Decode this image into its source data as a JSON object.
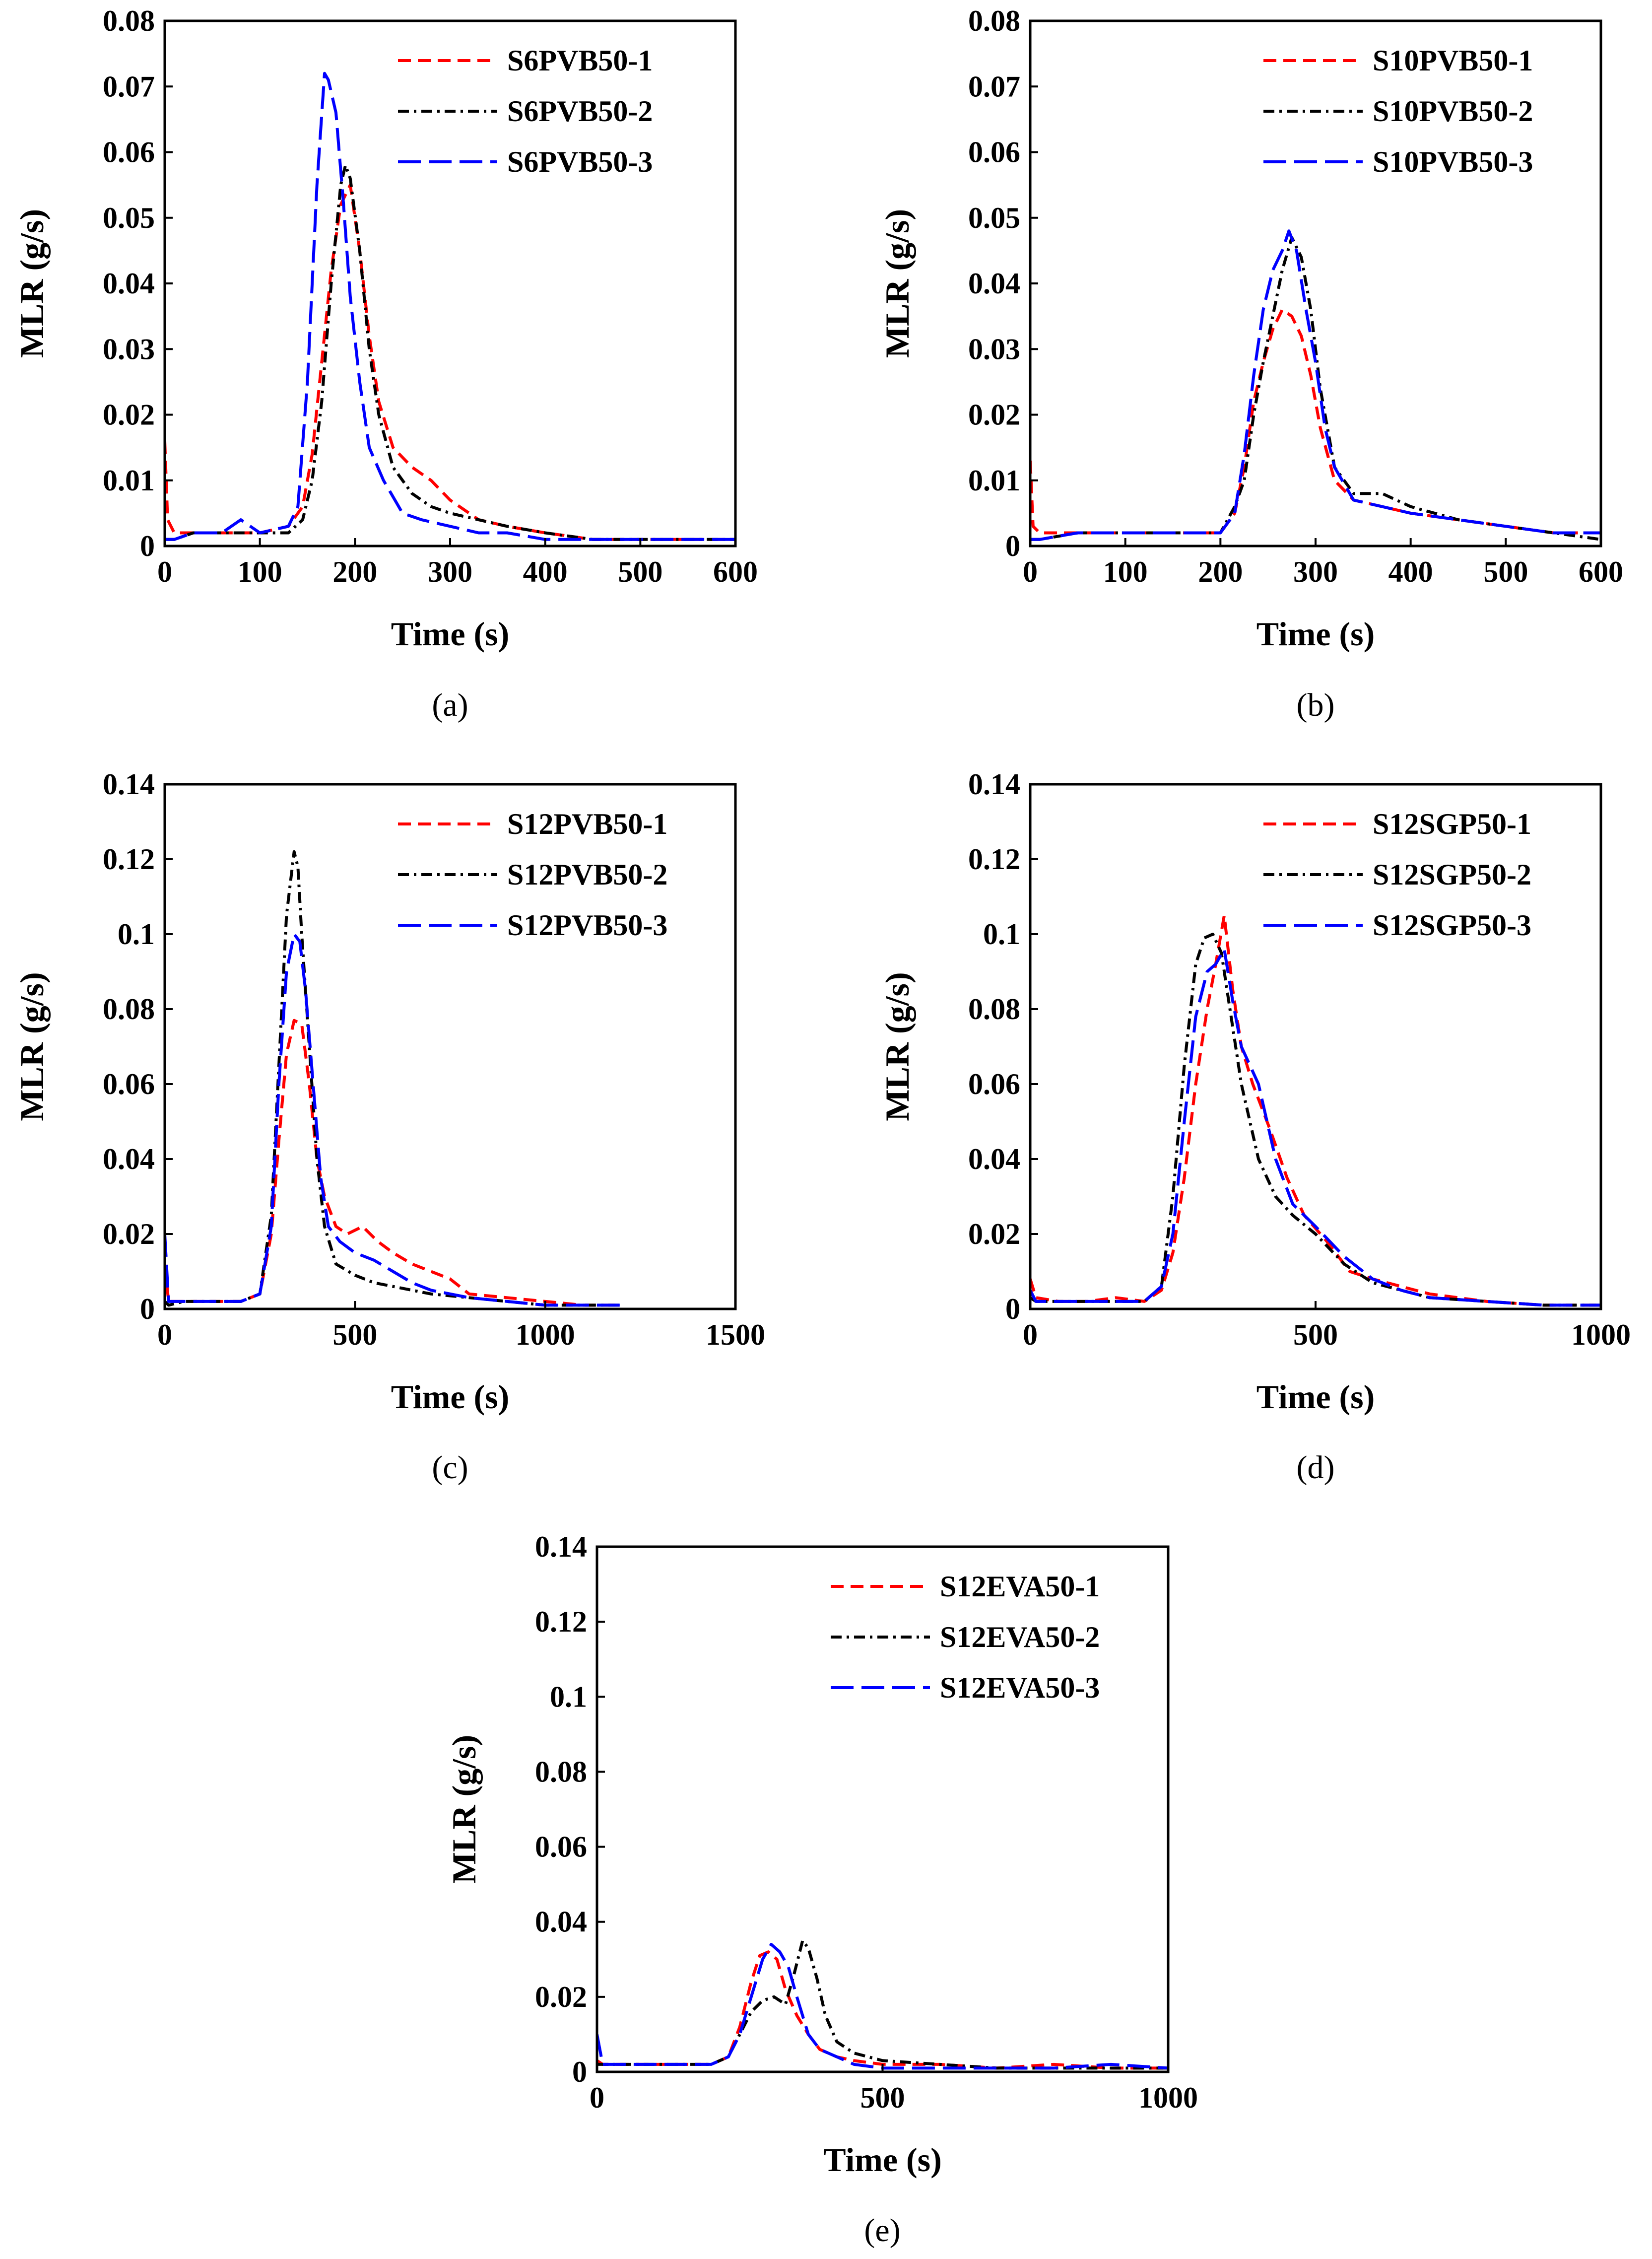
{
  "colors": {
    "series1": "#ff0000",
    "series2": "#000000",
    "series3": "#0000ff"
  },
  "chart_data": [
    {
      "type": "line",
      "panel_label": "(a)",
      "xlabel": "Time (s)",
      "ylabel": "MLR (g/s)",
      "xlim": [
        0,
        600
      ],
      "ylim": [
        0,
        0.08
      ],
      "xticks": [
        0,
        100,
        200,
        300,
        400,
        500,
        600
      ],
      "yticks": [
        0,
        0.01,
        0.02,
        0.03,
        0.04,
        0.05,
        0.06,
        0.07,
        0.08
      ],
      "xtick_labels": [
        "0",
        "100",
        "200",
        "300",
        "400",
        "500",
        "600"
      ],
      "ytick_labels": [
        "0",
        "0.01",
        "0.02",
        "0.03",
        "0.04",
        "0.05",
        "0.06",
        "0.07",
        "0.08"
      ],
      "legend_position": "top-right",
      "series": [
        {
          "name": "S6PVB50-1",
          "style": "dash",
          "x": [
            0,
            3,
            10,
            30,
            60,
            100,
            130,
            145,
            155,
            165,
            175,
            185,
            195,
            205,
            215,
            225,
            240,
            260,
            280,
            300,
            330,
            360,
            400,
            450,
            500,
            550,
            600
          ],
          "y": [
            0.016,
            0.004,
            0.002,
            0.002,
            0.002,
            0.002,
            0.003,
            0.006,
            0.014,
            0.028,
            0.042,
            0.052,
            0.055,
            0.045,
            0.032,
            0.022,
            0.015,
            0.012,
            0.01,
            0.007,
            0.004,
            0.003,
            0.002,
            0.001,
            0.001,
            0.001,
            0.001
          ]
        },
        {
          "name": "S6PVB50-2",
          "style": "dashdot",
          "x": [
            0,
            10,
            30,
            60,
            100,
            130,
            145,
            155,
            165,
            175,
            185,
            190,
            195,
            205,
            215,
            225,
            240,
            260,
            280,
            300,
            330,
            360,
            400,
            450,
            500,
            550,
            600
          ],
          "y": [
            0.001,
            0.001,
            0.002,
            0.002,
            0.002,
            0.002,
            0.004,
            0.01,
            0.022,
            0.04,
            0.055,
            0.058,
            0.056,
            0.045,
            0.03,
            0.02,
            0.012,
            0.008,
            0.006,
            0.005,
            0.004,
            0.003,
            0.002,
            0.001,
            0.001,
            0.001,
            0.001
          ]
        },
        {
          "name": "S6PVB50-3",
          "style": "longdash",
          "x": [
            0,
            10,
            30,
            60,
            80,
            100,
            130,
            140,
            150,
            160,
            168,
            172,
            180,
            188,
            195,
            205,
            215,
            230,
            250,
            270,
            300,
            330,
            360,
            400,
            450,
            500,
            550,
            600
          ],
          "y": [
            0.001,
            0.001,
            0.002,
            0.002,
            0.004,
            0.002,
            0.003,
            0.006,
            0.025,
            0.055,
            0.072,
            0.071,
            0.066,
            0.052,
            0.038,
            0.025,
            0.015,
            0.01,
            0.005,
            0.004,
            0.003,
            0.002,
            0.002,
            0.001,
            0.001,
            0.001,
            0.001,
            0.001
          ]
        }
      ]
    },
    {
      "type": "line",
      "panel_label": "(b)",
      "xlabel": "Time (s)",
      "ylabel": "MLR (g/s)",
      "xlim": [
        0,
        600
      ],
      "ylim": [
        0,
        0.08
      ],
      "xticks": [
        0,
        100,
        200,
        300,
        400,
        500,
        600
      ],
      "yticks": [
        0,
        0.01,
        0.02,
        0.03,
        0.04,
        0.05,
        0.06,
        0.07,
        0.08
      ],
      "xtick_labels": [
        "0",
        "100",
        "200",
        "300",
        "400",
        "500",
        "600"
      ],
      "ytick_labels": [
        "0",
        "0.01",
        "0.02",
        "0.03",
        "0.04",
        "0.05",
        "0.06",
        "0.07",
        "0.08"
      ],
      "legend_position": "top-right",
      "series": [
        {
          "name": "S10PVB50-1",
          "style": "dash",
          "x": [
            0,
            3,
            10,
            50,
            100,
            150,
            200,
            215,
            225,
            235,
            245,
            255,
            265,
            275,
            285,
            295,
            305,
            320,
            340,
            370,
            400,
            450,
            500,
            550,
            600
          ],
          "y": [
            0.013,
            0.003,
            0.002,
            0.002,
            0.002,
            0.002,
            0.002,
            0.005,
            0.012,
            0.022,
            0.028,
            0.033,
            0.036,
            0.035,
            0.032,
            0.026,
            0.018,
            0.01,
            0.007,
            0.006,
            0.005,
            0.004,
            0.003,
            0.002,
            0.002
          ]
        },
        {
          "name": "S10PVB50-2",
          "style": "dashdot",
          "x": [
            0,
            10,
            50,
            100,
            150,
            200,
            215,
            225,
            235,
            245,
            255,
            265,
            275,
            285,
            295,
            305,
            320,
            340,
            370,
            400,
            450,
            500,
            550,
            600
          ],
          "y": [
            0.001,
            0.001,
            0.002,
            0.002,
            0.002,
            0.002,
            0.006,
            0.01,
            0.02,
            0.028,
            0.035,
            0.042,
            0.047,
            0.044,
            0.036,
            0.024,
            0.012,
            0.008,
            0.008,
            0.006,
            0.004,
            0.003,
            0.002,
            0.001
          ]
        },
        {
          "name": "S10PVB50-3",
          "style": "longdash",
          "x": [
            0,
            10,
            50,
            100,
            150,
            200,
            215,
            225,
            235,
            245,
            255,
            265,
            272,
            280,
            290,
            300,
            310,
            320,
            340,
            370,
            400,
            450,
            500,
            550,
            600
          ],
          "y": [
            0.001,
            0.001,
            0.002,
            0.002,
            0.002,
            0.002,
            0.005,
            0.014,
            0.026,
            0.036,
            0.042,
            0.045,
            0.048,
            0.045,
            0.036,
            0.028,
            0.018,
            0.012,
            0.007,
            0.006,
            0.005,
            0.004,
            0.003,
            0.002,
            0.002
          ]
        }
      ]
    },
    {
      "type": "line",
      "panel_label": "(c)",
      "xlabel": "Time (s)",
      "ylabel": "MLR (g/s)",
      "xlim": [
        0,
        1500
      ],
      "ylim": [
        0,
        0.14
      ],
      "xticks": [
        0,
        500,
        1000,
        1500
      ],
      "yticks": [
        0,
        0.02,
        0.04,
        0.06,
        0.08,
        0.1,
        0.12,
        0.14
      ],
      "xtick_labels": [
        "0",
        "500",
        "1000",
        "1500"
      ],
      "ytick_labels": [
        "0",
        "0.02",
        "0.04",
        "0.06",
        "0.08",
        "0.1",
        "0.12",
        "0.14"
      ],
      "legend_position": "top-right",
      "series": [
        {
          "name": "S12PVB50-1",
          "style": "dash",
          "x": [
            0,
            10,
            50,
            100,
            200,
            250,
            280,
            300,
            320,
            340,
            360,
            380,
            400,
            420,
            450,
            480,
            520,
            560,
            600,
            650,
            700,
            750,
            800,
            900,
            1000,
            1100,
            1200
          ],
          "y": [
            0.012,
            0.002,
            0.002,
            0.002,
            0.002,
            0.004,
            0.02,
            0.045,
            0.068,
            0.077,
            0.076,
            0.06,
            0.04,
            0.03,
            0.022,
            0.02,
            0.022,
            0.018,
            0.015,
            0.012,
            0.01,
            0.008,
            0.004,
            0.003,
            0.002,
            0.001,
            0.001
          ]
        },
        {
          "name": "S12PVB50-2",
          "style": "dashdot",
          "x": [
            0,
            10,
            50,
            100,
            200,
            250,
            280,
            300,
            320,
            340,
            350,
            360,
            380,
            400,
            420,
            450,
            500,
            550,
            600,
            650,
            700,
            800,
            900,
            1000,
            1100,
            1200
          ],
          "y": [
            0.002,
            0.001,
            0.002,
            0.002,
            0.002,
            0.004,
            0.025,
            0.065,
            0.105,
            0.122,
            0.118,
            0.1,
            0.07,
            0.04,
            0.022,
            0.012,
            0.009,
            0.007,
            0.006,
            0.005,
            0.004,
            0.003,
            0.002,
            0.001,
            0.001,
            0.001
          ]
        },
        {
          "name": "S12PVB50-3",
          "style": "longdash",
          "x": [
            0,
            10,
            50,
            100,
            200,
            250,
            280,
            300,
            320,
            340,
            355,
            370,
            390,
            410,
            430,
            460,
            500,
            550,
            600,
            650,
            700,
            800,
            900,
            1000,
            1100,
            1200
          ],
          "y": [
            0.02,
            0.002,
            0.002,
            0.002,
            0.002,
            0.004,
            0.022,
            0.06,
            0.09,
            0.1,
            0.098,
            0.085,
            0.06,
            0.035,
            0.022,
            0.018,
            0.015,
            0.013,
            0.01,
            0.007,
            0.005,
            0.003,
            0.002,
            0.001,
            0.001,
            0.001
          ]
        }
      ]
    },
    {
      "type": "line",
      "panel_label": "(d)",
      "xlabel": "Time (s)",
      "ylabel": "MLR (g/s)",
      "xlim": [
        0,
        1000
      ],
      "ylim": [
        0,
        0.14
      ],
      "xticks": [
        0,
        500,
        1000
      ],
      "yticks": [
        0,
        0.02,
        0.04,
        0.06,
        0.08,
        0.1,
        0.12,
        0.14
      ],
      "xtick_labels": [
        "0",
        "500",
        "1000"
      ],
      "ytick_labels": [
        "0",
        "0.02",
        "0.04",
        "0.06",
        "0.08",
        "0.1",
        "0.12",
        "0.14"
      ],
      "legend_position": "top-right",
      "series": [
        {
          "name": "S12SGP50-1",
          "style": "dash",
          "x": [
            0,
            10,
            50,
            100,
            150,
            200,
            230,
            250,
            270,
            290,
            310,
            325,
            340,
            355,
            370,
            390,
            420,
            450,
            480,
            520,
            560,
            600,
            650,
            700,
            800,
            900,
            1000
          ],
          "y": [
            0.008,
            0.003,
            0.002,
            0.002,
            0.003,
            0.002,
            0.005,
            0.015,
            0.035,
            0.06,
            0.08,
            0.092,
            0.105,
            0.085,
            0.07,
            0.06,
            0.048,
            0.035,
            0.025,
            0.018,
            0.01,
            0.008,
            0.006,
            0.004,
            0.002,
            0.001,
            0.001
          ]
        },
        {
          "name": "S12SGP50-2",
          "style": "dashdot",
          "x": [
            0,
            10,
            50,
            100,
            150,
            200,
            230,
            250,
            270,
            290,
            305,
            320,
            335,
            350,
            370,
            400,
            430,
            460,
            500,
            550,
            600,
            650,
            700,
            800,
            900,
            1000
          ],
          "y": [
            0.003,
            0.002,
            0.002,
            0.002,
            0.002,
            0.002,
            0.006,
            0.03,
            0.065,
            0.092,
            0.099,
            0.1,
            0.095,
            0.08,
            0.06,
            0.04,
            0.03,
            0.025,
            0.02,
            0.012,
            0.007,
            0.005,
            0.003,
            0.002,
            0.001,
            0.001
          ]
        },
        {
          "name": "S12SGP50-3",
          "style": "longdash",
          "x": [
            0,
            10,
            50,
            100,
            150,
            200,
            230,
            250,
            270,
            290,
            310,
            325,
            340,
            355,
            370,
            400,
            430,
            460,
            500,
            550,
            600,
            650,
            700,
            800,
            900,
            1000
          ],
          "y": [
            0.005,
            0.002,
            0.002,
            0.002,
            0.002,
            0.002,
            0.006,
            0.02,
            0.05,
            0.078,
            0.09,
            0.092,
            0.096,
            0.082,
            0.07,
            0.06,
            0.04,
            0.028,
            0.022,
            0.014,
            0.008,
            0.005,
            0.003,
            0.002,
            0.001,
            0.001
          ]
        }
      ]
    },
    {
      "type": "line",
      "panel_label": "(e)",
      "xlabel": "Time (s)",
      "ylabel": "MLR (g/s)",
      "xlim": [
        0,
        1000
      ],
      "ylim": [
        0,
        0.14
      ],
      "xticks": [
        0,
        500,
        1000
      ],
      "yticks": [
        0,
        0.02,
        0.04,
        0.06,
        0.08,
        0.1,
        0.12,
        0.14
      ],
      "xtick_labels": [
        "0",
        "500",
        "1000"
      ],
      "ytick_labels": [
        "0",
        "0.02",
        "0.04",
        "0.06",
        "0.08",
        "0.1",
        "0.12",
        "0.14"
      ],
      "legend_position": "top-right",
      "series": [
        {
          "name": "S12EVA50-1",
          "style": "dash",
          "x": [
            0,
            10,
            50,
            100,
            150,
            200,
            230,
            250,
            270,
            285,
            300,
            315,
            330,
            350,
            370,
            390,
            420,
            450,
            500,
            600,
            700,
            800,
            900,
            1000
          ],
          "y": [
            0.003,
            0.002,
            0.002,
            0.002,
            0.002,
            0.002,
            0.004,
            0.012,
            0.024,
            0.031,
            0.032,
            0.03,
            0.022,
            0.015,
            0.01,
            0.006,
            0.004,
            0.003,
            0.002,
            0.002,
            0.001,
            0.002,
            0.001,
            0.001
          ]
        },
        {
          "name": "S12EVA50-2",
          "style": "dashdot",
          "x": [
            0,
            10,
            50,
            100,
            150,
            200,
            230,
            250,
            270,
            290,
            310,
            330,
            345,
            360,
            370,
            385,
            400,
            420,
            450,
            500,
            600,
            700,
            800,
            900,
            1000
          ],
          "y": [
            0.002,
            0.002,
            0.002,
            0.002,
            0.002,
            0.002,
            0.004,
            0.01,
            0.016,
            0.019,
            0.02,
            0.018,
            0.026,
            0.035,
            0.033,
            0.025,
            0.015,
            0.008,
            0.005,
            0.003,
            0.002,
            0.001,
            0.001,
            0.001,
            0.001
          ]
        },
        {
          "name": "S12EVA50-3",
          "style": "longdash",
          "x": [
            0,
            10,
            50,
            100,
            150,
            200,
            230,
            250,
            270,
            290,
            305,
            320,
            335,
            350,
            370,
            390,
            420,
            450,
            500,
            600,
            700,
            800,
            900,
            1000
          ],
          "y": [
            0.01,
            0.002,
            0.002,
            0.002,
            0.002,
            0.002,
            0.004,
            0.01,
            0.02,
            0.03,
            0.034,
            0.032,
            0.028,
            0.02,
            0.01,
            0.006,
            0.004,
            0.002,
            0.001,
            0.001,
            0.001,
            0.001,
            0.002,
            0.001
          ]
        }
      ]
    }
  ]
}
